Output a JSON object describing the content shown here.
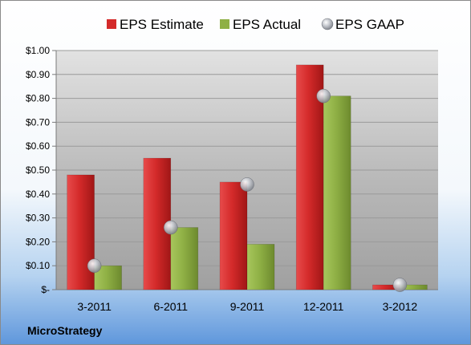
{
  "company": "MicroStrategy",
  "colors": {
    "estimate": "#d42a2a",
    "actual": "#8fb045",
    "gaap": "#b8bcc4"
  },
  "chart_data": {
    "type": "bar",
    "categories": [
      "3-2011",
      "6-2011",
      "9-2011",
      "12-2011",
      "3-2012"
    ],
    "series": [
      {
        "name": "EPS Estimate",
        "kind": "bar",
        "values": [
          0.48,
          0.55,
          0.45,
          0.94,
          0.02
        ]
      },
      {
        "name": "EPS Actual",
        "kind": "bar",
        "values": [
          0.1,
          0.26,
          0.19,
          0.81,
          0.02
        ]
      },
      {
        "name": "EPS GAAP",
        "kind": "marker",
        "values": [
          0.1,
          0.26,
          0.44,
          0.81,
          0.02
        ]
      }
    ],
    "y_ticks": [
      0.0,
      0.1,
      0.2,
      0.3,
      0.4,
      0.5,
      0.6,
      0.7,
      0.8,
      0.9,
      1.0
    ],
    "y_tick_labels": [
      "$-",
      "$0.10",
      "$0.20",
      "$0.30",
      "$0.40",
      "$0.50",
      "$0.60",
      "$0.70",
      "$0.80",
      "$0.90",
      "$1.00"
    ],
    "ylim": [
      0,
      1.0
    ],
    "grid": true,
    "legend_position": "top"
  }
}
